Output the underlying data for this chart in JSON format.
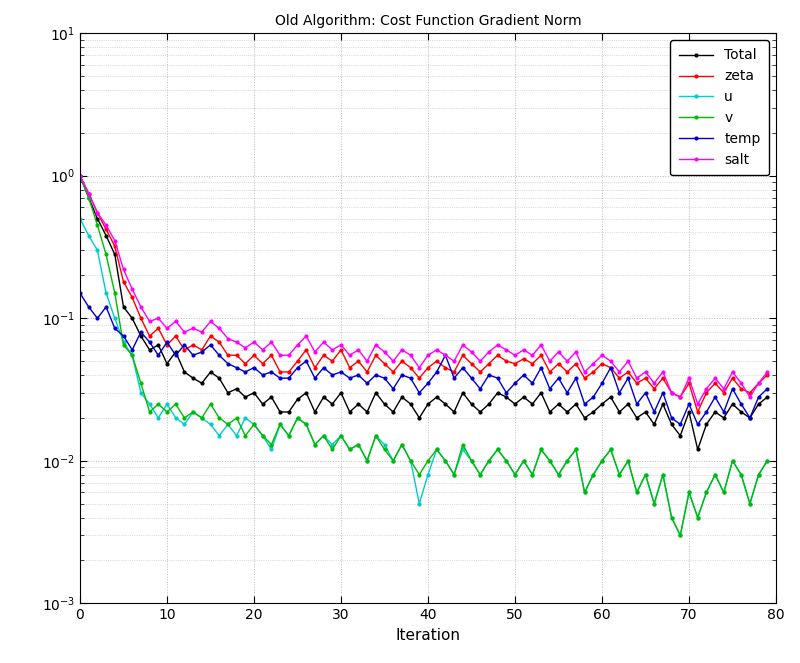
{
  "title": "Old Algorithm: Cost Function Gradient Norm",
  "xlabel": "Iteration",
  "xlim": [
    0,
    80
  ],
  "ylim": [
    0.001,
    10
  ],
  "bg_color": "#ffffff",
  "grid_color": "#aaaaaa",
  "legend_labels": [
    "Total",
    "zeta",
    "u",
    "v",
    "temp",
    "salt"
  ],
  "line_colors": [
    "#000000",
    "#ff0000",
    "#00cccc",
    "#00bb00",
    "#0000cc",
    "#ff00ff"
  ],
  "Total": [
    1.0,
    0.7,
    0.5,
    0.38,
    0.28,
    0.12,
    0.1,
    0.075,
    0.06,
    0.065,
    0.048,
    0.058,
    0.042,
    0.038,
    0.035,
    0.042,
    0.038,
    0.03,
    0.032,
    0.028,
    0.03,
    0.025,
    0.028,
    0.022,
    0.022,
    0.027,
    0.03,
    0.022,
    0.028,
    0.025,
    0.03,
    0.022,
    0.025,
    0.022,
    0.03,
    0.025,
    0.022,
    0.028,
    0.025,
    0.02,
    0.025,
    0.028,
    0.025,
    0.022,
    0.03,
    0.025,
    0.022,
    0.025,
    0.03,
    0.028,
    0.025,
    0.028,
    0.025,
    0.03,
    0.022,
    0.025,
    0.022,
    0.025,
    0.02,
    0.022,
    0.025,
    0.028,
    0.022,
    0.025,
    0.02,
    0.022,
    0.018,
    0.025,
    0.018,
    0.015,
    0.022,
    0.012,
    0.018,
    0.022,
    0.02,
    0.025,
    0.022,
    0.02,
    0.025,
    0.028
  ],
  "zeta": [
    1.0,
    0.75,
    0.55,
    0.42,
    0.32,
    0.18,
    0.14,
    0.1,
    0.075,
    0.085,
    0.065,
    0.075,
    0.06,
    0.065,
    0.06,
    0.075,
    0.068,
    0.055,
    0.055,
    0.048,
    0.055,
    0.048,
    0.055,
    0.042,
    0.042,
    0.05,
    0.06,
    0.045,
    0.055,
    0.05,
    0.06,
    0.045,
    0.05,
    0.042,
    0.055,
    0.048,
    0.042,
    0.05,
    0.045,
    0.038,
    0.045,
    0.05,
    0.045,
    0.042,
    0.055,
    0.048,
    0.042,
    0.048,
    0.055,
    0.05,
    0.048,
    0.052,
    0.048,
    0.055,
    0.042,
    0.048,
    0.042,
    0.048,
    0.038,
    0.042,
    0.048,
    0.045,
    0.038,
    0.042,
    0.035,
    0.038,
    0.032,
    0.038,
    0.03,
    0.028,
    0.035,
    0.022,
    0.03,
    0.035,
    0.03,
    0.038,
    0.032,
    0.03,
    0.035,
    0.04
  ],
  "u": [
    0.5,
    0.38,
    0.3,
    0.15,
    0.1,
    0.068,
    0.055,
    0.03,
    0.025,
    0.02,
    0.025,
    0.02,
    0.018,
    0.022,
    0.02,
    0.018,
    0.015,
    0.018,
    0.015,
    0.02,
    0.018,
    0.015,
    0.012,
    0.018,
    0.015,
    0.02,
    0.018,
    0.013,
    0.015,
    0.013,
    0.015,
    0.012,
    0.013,
    0.01,
    0.015,
    0.013,
    0.01,
    0.013,
    0.01,
    0.005,
    0.008,
    0.012,
    0.01,
    0.008,
    0.012,
    0.01,
    0.008,
    0.01,
    0.012,
    0.01,
    0.008,
    0.01,
    0.008,
    0.012,
    0.01,
    0.008,
    0.01,
    0.012,
    0.006,
    0.008,
    0.01,
    0.012,
    0.008,
    0.01,
    0.006,
    0.008,
    0.005,
    0.008,
    0.004,
    0.003,
    0.006,
    0.004,
    0.006,
    0.008,
    0.006,
    0.01,
    0.008,
    0.005,
    0.008,
    0.01
  ],
  "v": [
    1.0,
    0.7,
    0.45,
    0.28,
    0.15,
    0.065,
    0.055,
    0.035,
    0.022,
    0.025,
    0.022,
    0.025,
    0.02,
    0.022,
    0.02,
    0.025,
    0.02,
    0.018,
    0.02,
    0.015,
    0.018,
    0.015,
    0.013,
    0.018,
    0.015,
    0.02,
    0.018,
    0.013,
    0.015,
    0.012,
    0.015,
    0.012,
    0.013,
    0.01,
    0.015,
    0.012,
    0.01,
    0.013,
    0.01,
    0.008,
    0.01,
    0.012,
    0.01,
    0.008,
    0.013,
    0.01,
    0.008,
    0.01,
    0.012,
    0.01,
    0.008,
    0.01,
    0.008,
    0.012,
    0.01,
    0.008,
    0.01,
    0.012,
    0.006,
    0.008,
    0.01,
    0.012,
    0.008,
    0.01,
    0.006,
    0.008,
    0.005,
    0.008,
    0.004,
    0.003,
    0.006,
    0.004,
    0.006,
    0.008,
    0.006,
    0.01,
    0.008,
    0.005,
    0.008,
    0.01
  ],
  "temp": [
    0.15,
    0.12,
    0.1,
    0.12,
    0.085,
    0.075,
    0.06,
    0.08,
    0.068,
    0.055,
    0.068,
    0.055,
    0.065,
    0.055,
    0.058,
    0.065,
    0.055,
    0.048,
    0.045,
    0.042,
    0.045,
    0.04,
    0.042,
    0.038,
    0.038,
    0.045,
    0.05,
    0.038,
    0.045,
    0.04,
    0.042,
    0.038,
    0.04,
    0.035,
    0.04,
    0.038,
    0.032,
    0.04,
    0.038,
    0.03,
    0.035,
    0.042,
    0.055,
    0.038,
    0.045,
    0.038,
    0.032,
    0.04,
    0.038,
    0.03,
    0.035,
    0.04,
    0.035,
    0.045,
    0.032,
    0.038,
    0.03,
    0.038,
    0.025,
    0.028,
    0.035,
    0.045,
    0.03,
    0.038,
    0.025,
    0.03,
    0.022,
    0.03,
    0.02,
    0.018,
    0.025,
    0.018,
    0.022,
    0.028,
    0.022,
    0.032,
    0.025,
    0.02,
    0.028,
    0.032
  ],
  "salt": [
    1.0,
    0.75,
    0.55,
    0.45,
    0.35,
    0.22,
    0.16,
    0.12,
    0.095,
    0.1,
    0.085,
    0.095,
    0.08,
    0.085,
    0.08,
    0.095,
    0.085,
    0.072,
    0.068,
    0.062,
    0.068,
    0.06,
    0.068,
    0.055,
    0.055,
    0.065,
    0.075,
    0.058,
    0.068,
    0.06,
    0.065,
    0.055,
    0.06,
    0.05,
    0.065,
    0.058,
    0.05,
    0.06,
    0.055,
    0.045,
    0.055,
    0.06,
    0.055,
    0.05,
    0.065,
    0.058,
    0.05,
    0.058,
    0.065,
    0.06,
    0.055,
    0.06,
    0.055,
    0.065,
    0.05,
    0.058,
    0.05,
    0.058,
    0.042,
    0.048,
    0.055,
    0.05,
    0.042,
    0.05,
    0.038,
    0.042,
    0.035,
    0.042,
    0.03,
    0.028,
    0.038,
    0.025,
    0.032,
    0.038,
    0.032,
    0.042,
    0.035,
    0.028,
    0.035,
    0.042
  ]
}
